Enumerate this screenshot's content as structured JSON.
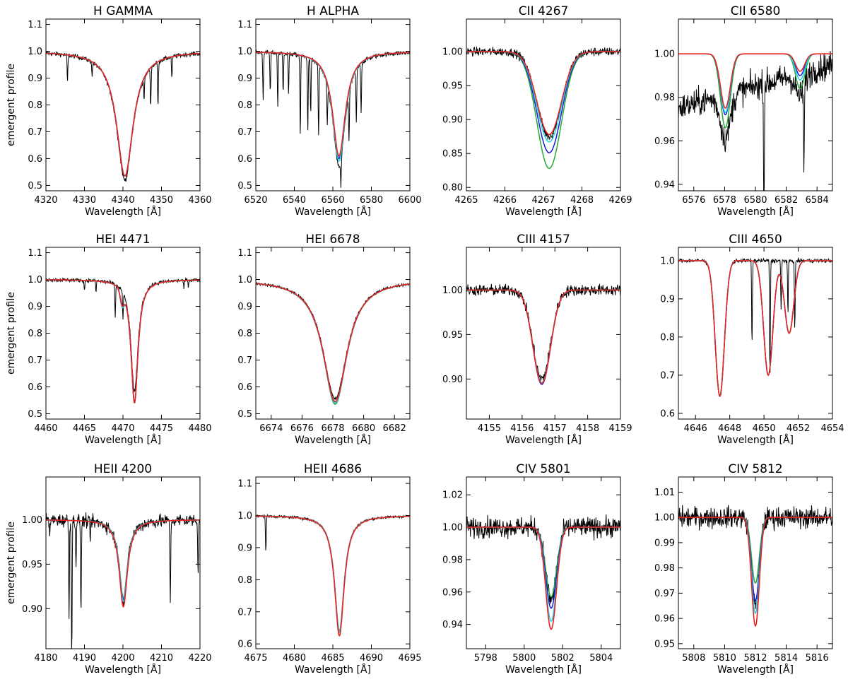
{
  "figure": {
    "ylabel": "emergent profile",
    "xlabel": "Wavelength [Å]"
  },
  "colors": {
    "observed": "#000000",
    "red": "#e8231f",
    "green": "#22aa33",
    "blue": "#1a1ad6",
    "cyan": "#22d3e8"
  },
  "chart_data": [
    {
      "type": "line",
      "title": "H GAMMA",
      "xlabel": "Wavelength [Å]",
      "ylabel": "emergent profile",
      "xlim": [
        4320,
        4360
      ],
      "ylim": [
        0.48,
        1.12
      ],
      "xticks": [
        4320,
        4330,
        4340,
        4350,
        4360
      ],
      "xtick_labels": [
        "4320",
        "4330",
        "4340",
        "4350",
        "4360"
      ],
      "yticks": [
        0.5,
        0.6,
        0.7,
        0.8,
        0.9,
        1.0,
        1.1
      ],
      "ytick_labels": [
        "0.5",
        "0.6",
        "0.7",
        "0.8",
        "0.9",
        "1.0",
        "1.1"
      ],
      "lines": [
        {
          "center": 4340.5,
          "shape": "lorentz",
          "width": 2.6,
          "depth": {
            "red": 0.465,
            "green": 0.465,
            "blue": 0.465,
            "cyan": 0.465,
            "obs": 0.48
          }
        }
      ],
      "obs_noise": 0.008,
      "obs_dips": [
        [
          4325.6,
          0.1
        ],
        [
          4332.0,
          0.05
        ],
        [
          4345.5,
          0.08
        ],
        [
          4347.2,
          0.15
        ],
        [
          4349.1,
          0.17
        ],
        [
          4352.7,
          0.08
        ]
      ]
    },
    {
      "type": "line",
      "title": "H ALPHA",
      "xlabel": "Wavelength [Å]",
      "ylabel": "",
      "xlim": [
        6520,
        6600
      ],
      "ylim": [
        0.48,
        1.12
      ],
      "xticks": [
        6520,
        6540,
        6560,
        6580,
        6600
      ],
      "xtick_labels": [
        "6520",
        "6540",
        "6560",
        "6580",
        "6600"
      ],
      "yticks": [
        0.5,
        0.6,
        0.7,
        0.8,
        0.9,
        1.0,
        1.1
      ],
      "ytick_labels": [
        "0.5",
        "0.6",
        "0.7",
        "0.8",
        "0.9",
        "1.0",
        "1.1"
      ],
      "lines": [
        {
          "center": 6563.2,
          "shape": "lorentz",
          "width": 4.0,
          "depth": {
            "red": 0.39,
            "green": 0.4,
            "blue": 0.4,
            "cyan": 0.41,
            "obs": 0.43
          }
        }
      ],
      "obs_noise": 0.008,
      "obs_dips": [
        [
          6523.8,
          0.18
        ],
        [
          6527.5,
          0.15
        ],
        [
          6531.4,
          0.2
        ],
        [
          6534.2,
          0.15
        ],
        [
          6537.0,
          0.15
        ],
        [
          6543.1,
          0.3
        ],
        [
          6547.0,
          0.28
        ],
        [
          6548.5,
          0.2
        ],
        [
          6552.6,
          0.27
        ],
        [
          6557.1,
          0.15
        ],
        [
          6564.2,
          0.1
        ],
        [
          6568.4,
          0.18
        ],
        [
          6572.2,
          0.2
        ],
        [
          6574.7,
          0.18
        ]
      ]
    },
    {
      "type": "line",
      "title": "CII 4267",
      "xlabel": "Wavelength [Å]",
      "ylabel": "",
      "xlim": [
        4265,
        4269
      ],
      "ylim": [
        0.795,
        1.048
      ],
      "xticks": [
        4265,
        4266,
        4267,
        4268,
        4269
      ],
      "xtick_labels": [
        "4265",
        "4266",
        "4267",
        "4268",
        "4269"
      ],
      "yticks": [
        0.8,
        0.85,
        0.9,
        0.95,
        1.0
      ],
      "ytick_labels": [
        "0.80",
        "0.85",
        "0.90",
        "0.95",
        "1.00"
      ],
      "lines": [
        {
          "center": 4267.15,
          "shape": "gauss",
          "width": 0.45,
          "depth": {
            "red": 0.122,
            "green": 0.172,
            "blue": 0.149,
            "cyan": 0.133,
            "obs": 0.125
          }
        }
      ],
      "obs_noise": 0.006,
      "obs_dips": []
    },
    {
      "type": "line",
      "title": "CII 6580",
      "xlabel": "Wavelength [Å]",
      "ylabel": "",
      "xlim": [
        6575,
        6585
      ],
      "ylim": [
        0.937,
        1.016
      ],
      "xticks": [
        6576,
        6578,
        6580,
        6582,
        6584
      ],
      "xtick_labels": [
        "6576",
        "6578",
        "6580",
        "6582",
        "6584"
      ],
      "yticks": [
        0.94,
        0.96,
        0.98,
        1.0
      ],
      "ytick_labels": [
        "0.94",
        "0.96",
        "0.98",
        "1.00"
      ],
      "lines": [
        {
          "center": 6578.05,
          "shape": "gauss",
          "width": 0.45,
          "depth": {
            "red": 0.025,
            "green": 0.034,
            "blue": 0.028,
            "cyan": 0.027,
            "obs": 0.02
          }
        },
        {
          "center": 6582.9,
          "shape": "gauss",
          "width": 0.42,
          "depth": {
            "red": 0.008,
            "green": 0.016,
            "blue": 0.01,
            "cyan": 0.012,
            "obs": 0.01
          }
        }
      ],
      "obs_slope": [
        6575,
        0.975,
        6585,
        0.995
      ],
      "obs_noise": 0.006,
      "obs_dips": [
        [
          6580.55,
          0.065
        ],
        [
          6583.15,
          0.04
        ]
      ]
    },
    {
      "type": "line",
      "title": "HEI 4471",
      "xlabel": "Wavelength [Å]",
      "ylabel": "emergent profile",
      "xlim": [
        4460,
        4480
      ],
      "ylim": [
        0.48,
        1.12
      ],
      "xticks": [
        4460,
        4465,
        4470,
        4475,
        4480
      ],
      "xtick_labels": [
        "4460",
        "4465",
        "4470",
        "4475",
        "4480"
      ],
      "yticks": [
        0.5,
        0.6,
        0.7,
        0.8,
        0.9,
        1.0,
        1.1
      ],
      "ytick_labels": [
        "0.5",
        "0.6",
        "0.7",
        "0.8",
        "0.9",
        "1.0",
        "1.1"
      ],
      "lines": [
        {
          "center": 4471.5,
          "shape": "lorentz",
          "width": 0.55,
          "depth": {
            "red": 0.46,
            "green": 0.46,
            "blue": 0.46,
            "cyan": 0.46,
            "obs": 0.42
          }
        },
        {
          "center": 4469.9,
          "shape": "gauss",
          "width": 0.35,
          "depth": {
            "red": 0.05,
            "green": 0.055,
            "blue": 0.055,
            "cyan": 0.055,
            "obs": 0.0
          }
        }
      ],
      "obs_noise": 0.007,
      "obs_dips": [
        [
          4465.0,
          0.04
        ],
        [
          4466.5,
          0.04
        ],
        [
          4469.0,
          0.12
        ],
        [
          4470.0,
          0.1
        ],
        [
          4477.9,
          0.03
        ],
        [
          4478.5,
          0.02
        ]
      ]
    },
    {
      "type": "line",
      "title": "HEI 6678",
      "xlabel": "Wavelength [Å]",
      "ylabel": "",
      "xlim": [
        6673,
        6683
      ],
      "ylim": [
        0.48,
        1.12
      ],
      "xticks": [
        6674,
        6676,
        6678,
        6680,
        6682
      ],
      "xtick_labels": [
        "6674",
        "6676",
        "6678",
        "6680",
        "6682"
      ],
      "yticks": [
        0.5,
        0.6,
        0.7,
        0.8,
        0.9,
        1.0,
        1.1
      ],
      "ytick_labels": [
        "0.5",
        "0.6",
        "0.7",
        "0.8",
        "0.9",
        "1.0",
        "1.1"
      ],
      "lines": [
        {
          "center": 6678.15,
          "shape": "lorentz",
          "width": 0.95,
          "depth": {
            "red": 0.455,
            "green": 0.465,
            "blue": 0.46,
            "cyan": 0.46,
            "obs": 0.445
          }
        }
      ],
      "obs_noise": 0.005,
      "obs_dips": []
    },
    {
      "type": "line",
      "title": "CIII 4157",
      "xlabel": "Wavelength [Å]",
      "ylabel": "",
      "xlim": [
        4154.3,
        4159
      ],
      "ylim": [
        0.855,
        1.048
      ],
      "xticks": [
        4155,
        4156,
        4157,
        4158,
        4159
      ],
      "xtick_labels": [
        "4155",
        "4156",
        "4157",
        "4158",
        "4159"
      ],
      "yticks": [
        0.9,
        0.95,
        1.0
      ],
      "ytick_labels": [
        "0.90",
        "0.95",
        "1.00"
      ],
      "lines": [
        {
          "center": 4156.6,
          "shape": "gauss",
          "width": 0.38,
          "depth": {
            "red": 0.105,
            "green": 0.104,
            "blue": 0.106,
            "cyan": 0.104,
            "obs": 0.1
          }
        }
      ],
      "obs_noise": 0.006,
      "obs_dips": []
    },
    {
      "type": "line",
      "title": "CIII 4650",
      "xlabel": "Wavelength [Å]",
      "ylabel": "",
      "xlim": [
        4645,
        4654
      ],
      "ylim": [
        0.585,
        1.035
      ],
      "xticks": [
        4646,
        4648,
        4650,
        4652,
        4654
      ],
      "xtick_labels": [
        "4646",
        "4648",
        "4650",
        "4652",
        "4654"
      ],
      "yticks": [
        0.6,
        0.7,
        0.8,
        0.9,
        1.0
      ],
      "ytick_labels": [
        "0.6",
        "0.7",
        "0.8",
        "0.9",
        "1.0"
      ],
      "lines": [
        {
          "center": 4647.42,
          "shape": "gauss",
          "width": 0.38,
          "depth": {
            "red": 0.355,
            "green": 0.355,
            "blue": 0.355,
            "cyan": 0.355,
            "obs": 0.355
          }
        },
        {
          "center": 4650.25,
          "shape": "gauss",
          "width": 0.38,
          "depth": {
            "red": 0.3,
            "green": 0.3,
            "blue": 0.3,
            "cyan": 0.3,
            "obs": 0.0
          }
        },
        {
          "center": 4651.47,
          "shape": "gauss",
          "width": 0.38,
          "depth": {
            "red": 0.19,
            "green": 0.19,
            "blue": 0.19,
            "cyan": 0.19,
            "obs": 0.0
          }
        }
      ],
      "obs_noise": 0.005,
      "obs_dips": [
        [
          4649.3,
          0.22
        ],
        [
          4650.35,
          0.31
        ],
        [
          4651.0,
          0.13
        ],
        [
          4651.4,
          0.14
        ],
        [
          4651.8,
          0.18
        ]
      ]
    },
    {
      "type": "line",
      "title": "HEII 4200",
      "xlabel": "Wavelength [Å]",
      "ylabel": "emergent profile",
      "xlim": [
        4180,
        4220
      ],
      "ylim": [
        0.855,
        1.048
      ],
      "xticks": [
        4180,
        4190,
        4200,
        4210,
        4220
      ],
      "xtick_labels": [
        "4180",
        "4190",
        "4200",
        "4210",
        "4220"
      ],
      "yticks": [
        0.9,
        0.95,
        1.0
      ],
      "ytick_labels": [
        "0.90",
        "0.95",
        "1.00"
      ],
      "lines": [
        {
          "center": 4200.1,
          "shape": "lorentz",
          "width": 1.3,
          "depth": {
            "red": 0.098,
            "green": 0.088,
            "blue": 0.09,
            "cyan": 0.092,
            "obs": 0.09
          }
        }
      ],
      "obs_noise": 0.007,
      "obs_dips": [
        [
          4181.0,
          0.02
        ],
        [
          4186.0,
          0.11
        ],
        [
          4186.7,
          0.15
        ],
        [
          4187.8,
          0.05
        ],
        [
          4189.1,
          0.11
        ],
        [
          4191.5,
          0.02
        ],
        [
          4212.3,
          0.095
        ],
        [
          4219.5,
          0.06
        ]
      ]
    },
    {
      "type": "line",
      "title": "HEII 4686",
      "xlabel": "Wavelength [Å]",
      "ylabel": "",
      "xlim": [
        4675,
        4695
      ],
      "ylim": [
        0.585,
        1.12
      ],
      "xticks": [
        4675,
        4680,
        4685,
        4690,
        4695
      ],
      "xtick_labels": [
        "4675",
        "4680",
        "4685",
        "4690",
        "4695"
      ],
      "yticks": [
        0.6,
        0.7,
        0.8,
        0.9,
        1.0,
        1.1
      ],
      "ytick_labels": [
        "0.6",
        "0.7",
        "0.8",
        "0.9",
        "1.0",
        "1.1"
      ],
      "lines": [
        {
          "center": 4685.85,
          "shape": "lorentz",
          "width": 0.75,
          "depth": {
            "red": 0.375,
            "green": 0.36,
            "blue": 0.365,
            "cyan": 0.365,
            "obs": 0.36
          }
        }
      ],
      "obs_noise": 0.004,
      "obs_dips": [
        [
          4676.3,
          0.11
        ]
      ]
    },
    {
      "type": "line",
      "title": "CIV 5801",
      "xlabel": "Wavelength [Å]",
      "ylabel": "",
      "xlim": [
        5797,
        5805
      ],
      "ylim": [
        0.925,
        1.031
      ],
      "xticks": [
        5798,
        5800,
        5802,
        5804
      ],
      "xtick_labels": [
        "5798",
        "5800",
        "5802",
        "5804"
      ],
      "yticks": [
        0.94,
        0.96,
        0.98,
        1.0,
        1.02
      ],
      "ytick_labels": [
        "0.94",
        "0.96",
        "0.98",
        "1.00",
        "1.02"
      ],
      "lines": [
        {
          "center": 5801.4,
          "shape": "gauss",
          "width": 0.4,
          "depth": {
            "red": 0.063,
            "green": 0.043,
            "blue": 0.05,
            "cyan": 0.058,
            "obs": 0.045
          }
        }
      ],
      "obs_noise": 0.006,
      "obs_dips": []
    },
    {
      "type": "line",
      "title": "CIV 5812",
      "xlabel": "Wavelength [Å]",
      "ylabel": "",
      "xlim": [
        5807,
        5817
      ],
      "ylim": [
        0.948,
        1.016
      ],
      "xticks": [
        5808,
        5810,
        5812,
        5814,
        5816
      ],
      "xtick_labels": [
        "5808",
        "5810",
        "5812",
        "5814",
        "5816"
      ],
      "yticks": [
        0.95,
        0.96,
        0.97,
        0.98,
        0.99,
        1.0,
        1.01
      ],
      "ytick_labels": [
        "0.95",
        "0.96",
        "0.97",
        "0.98",
        "0.99",
        "1.00",
        "1.01"
      ],
      "lines": [
        {
          "center": 5812.0,
          "shape": "gauss",
          "width": 0.36,
          "depth": {
            "red": 0.043,
            "green": 0.026,
            "blue": 0.033,
            "cyan": 0.038,
            "obs": 0.035
          }
        }
      ],
      "obs_noise": 0.004,
      "obs_dips": []
    }
  ]
}
